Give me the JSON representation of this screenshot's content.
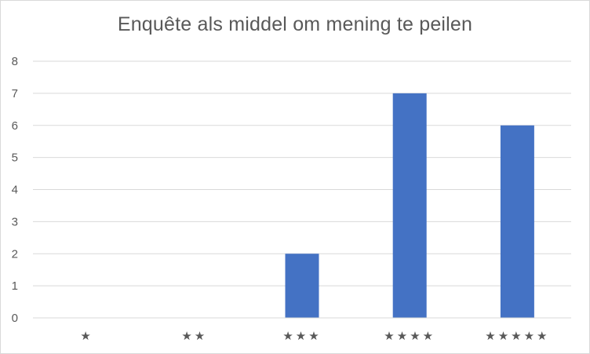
{
  "chart_data": {
    "type": "bar",
    "title": "Enquête als middel om mening te peilen",
    "xlabel": "",
    "ylabel": "",
    "categories": [
      "★",
      "★★",
      "★★★",
      "★★★★",
      "★★★★★"
    ],
    "values": [
      0,
      0,
      2,
      7,
      6
    ],
    "ylim": [
      0,
      8
    ],
    "yticks": [
      0,
      1,
      2,
      3,
      4,
      5,
      6,
      7,
      8
    ],
    "grid": true,
    "legend": "none",
    "bar_color": "#4472c4",
    "grid_color": "#d9d9d9",
    "text_color": "#595959"
  }
}
